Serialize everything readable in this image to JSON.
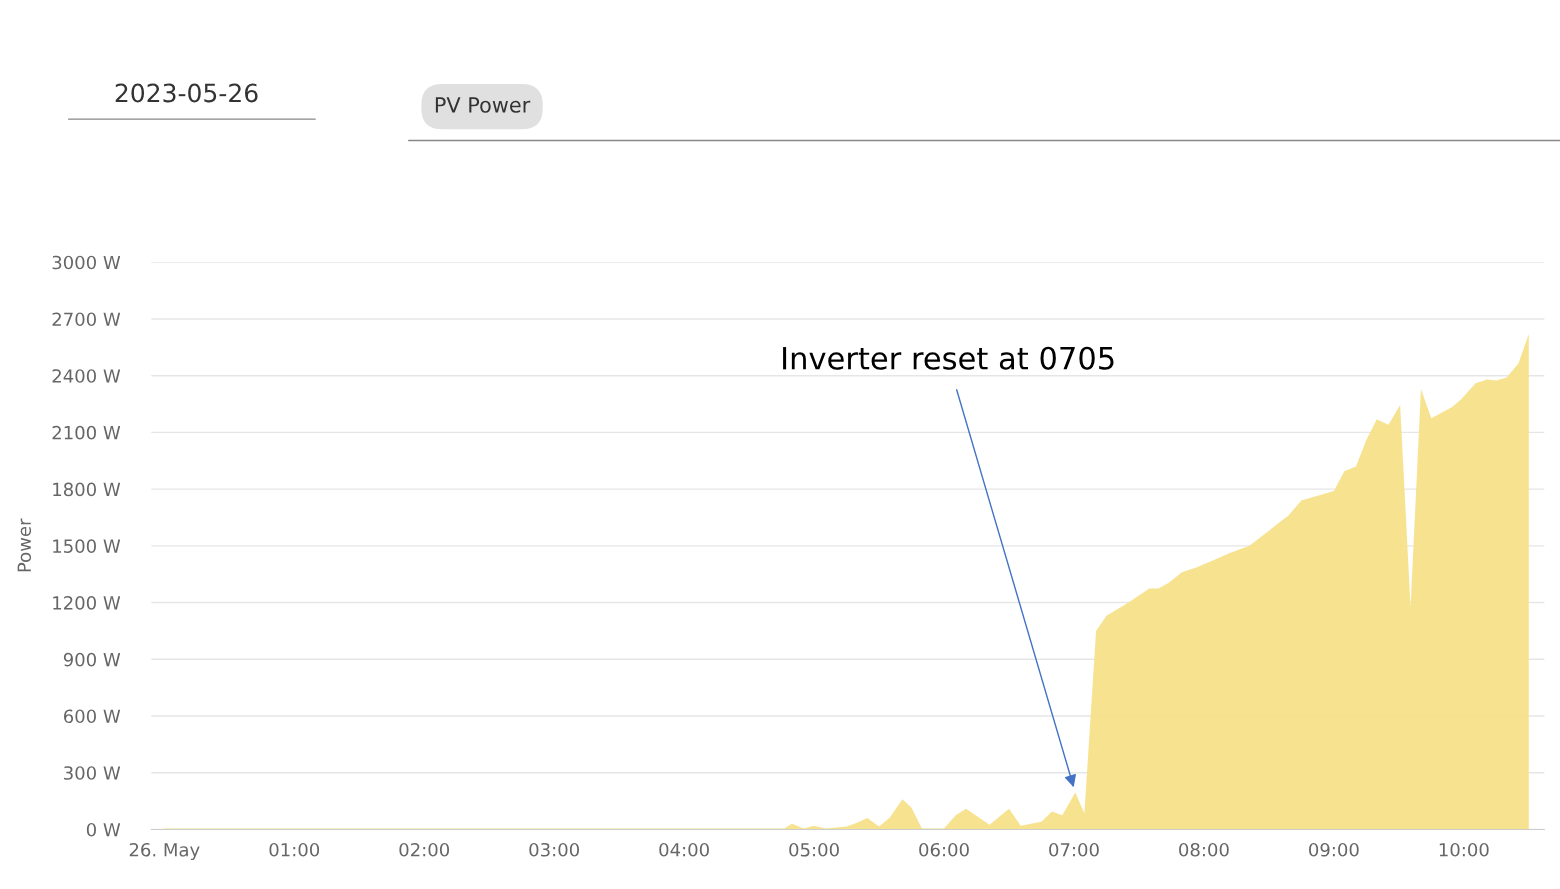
{
  "chart_data": {
    "type": "area",
    "title": "2023-05-26",
    "subtitle": "PV Power",
    "ylabel": "Power",
    "annotations": [
      {
        "text": "Inverter reset at 0705",
        "x": 7.01,
        "y": 195
      }
    ],
    "x": [
      0,
      4.6,
      4.77,
      4.83,
      4.92,
      5.0,
      5.09,
      5.17,
      5.25,
      5.33,
      5.41,
      5.5,
      5.58,
      5.68,
      5.75,
      5.83,
      6.0,
      6.09,
      6.17,
      6.35,
      6.5,
      6.59,
      6.75,
      6.83,
      6.91,
      7.01,
      7.08,
      7.17,
      7.25,
      7.42,
      7.58,
      7.65,
      7.73,
      7.83,
      7.94,
      8.06,
      8.19,
      8.35,
      8.5,
      8.65,
      8.75,
      9.0,
      9.08,
      9.17,
      9.25,
      9.33,
      9.42,
      9.51,
      9.59,
      9.67,
      9.75,
      9.91,
      9.98,
      10.09,
      10.18,
      10.25,
      10.33,
      10.42,
      10.5
    ],
    "series": [
      {
        "color": "#f7e08a",
        "values": [
          5,
          5,
          5,
          30,
          5,
          20,
          5,
          10,
          15,
          35,
          60,
          15,
          60,
          160,
          115,
          5,
          5,
          75,
          110,
          25,
          110,
          20,
          40,
          95,
          75,
          195,
          85,
          1050,
          1130,
          1200,
          1275,
          1275,
          1305,
          1360,
          1385,
          1420,
          1460,
          1500,
          1580,
          1660,
          1740,
          1790,
          1895,
          1920,
          2060,
          2170,
          2140,
          2245,
          1175,
          2330,
          2175,
          2235,
          2275,
          2360,
          2380,
          2375,
          2390,
          2465,
          2620
        ]
      }
    ],
    "xlim": [
      -0.1,
      10.62
    ],
    "xticks": [
      {
        "value": 0,
        "label": "26. May"
      },
      {
        "value": 1,
        "label": "01:00"
      },
      {
        "value": 2,
        "label": "02:00"
      },
      {
        "value": 3,
        "label": "03:00"
      },
      {
        "value": 4,
        "label": "04:00"
      },
      {
        "value": 5,
        "label": "05:00"
      },
      {
        "value": 6,
        "label": "06:00"
      },
      {
        "value": 7,
        "label": "07:00"
      },
      {
        "value": 8,
        "label": "08:00"
      },
      {
        "value": 9,
        "label": "09:00"
      },
      {
        "value": 10,
        "label": "10:00"
      }
    ],
    "ylim": [
      0,
      3000
    ],
    "yticks": [
      {
        "value": 0,
        "label": "0 W"
      },
      {
        "value": 300,
        "label": "300 W"
      },
      {
        "value": 600,
        "label": "600 W"
      },
      {
        "value": 900,
        "label": "900 W"
      },
      {
        "value": 1200,
        "label": "1200 W"
      },
      {
        "value": 1500,
        "label": "1500 W"
      },
      {
        "value": 1800,
        "label": "1800 W"
      },
      {
        "value": 2100,
        "label": "2100 W"
      },
      {
        "value": 2400,
        "label": "2400 W"
      },
      {
        "value": 2700,
        "label": "2700 W"
      },
      {
        "value": 3000,
        "label": "3000 W"
      }
    ],
    "grid": "y",
    "legend": false
  }
}
